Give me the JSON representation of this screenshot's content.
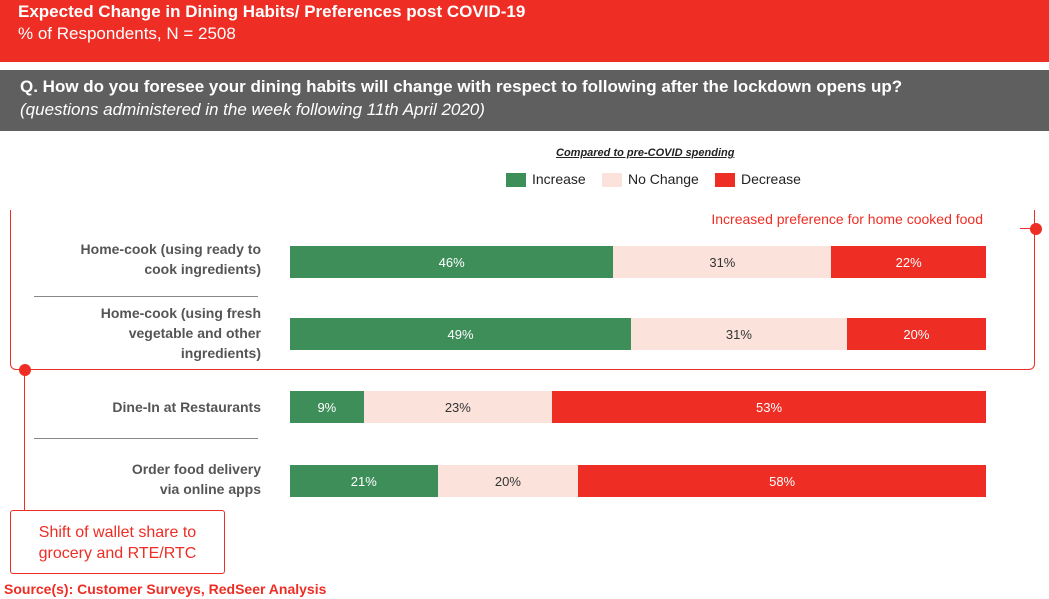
{
  "header": {
    "title": "Expected Change in Dining Habits/ Preferences post COVID-19",
    "subtitle": "% of Respondents, N = 2508"
  },
  "question": {
    "text": "Q. How do you foresee your dining habits will change with respect to following after the lockdown opens up?",
    "note": "(questions administered in the week following 11th April 2020)"
  },
  "chart_data": {
    "type": "bar",
    "orientation": "horizontal",
    "stacked": true,
    "legend_title": "Compared to pre-COVID spending",
    "legend_position": "top",
    "categories": [
      "Home-cook (using ready to cook ingredients)",
      "Home-cook (using fresh vegetable and other ingredients)",
      "Dine-In at Restaurants",
      "Order food delivery via online apps"
    ],
    "category_lines": [
      [
        "Home-cook (using ready to",
        "cook ingredients)"
      ],
      [
        "Home-cook (using fresh",
        "vegetable and other",
        "ingredients)"
      ],
      [
        "Dine-In at Restaurants"
      ],
      [
        "Order food delivery",
        "via online apps"
      ]
    ],
    "series": [
      {
        "name": "Increase",
        "color": "#3e8e5a",
        "values": [
          46,
          49,
          9,
          21
        ]
      },
      {
        "name": "No Change",
        "color": "#fbe3dc",
        "values": [
          31,
          31,
          23,
          20
        ]
      },
      {
        "name": "Decrease",
        "color": "#ee2d24",
        "values": [
          22,
          20,
          53,
          58
        ]
      }
    ],
    "data_labels": [
      [
        "46%",
        "31%",
        "22%"
      ],
      [
        "49%",
        "31%",
        "20%"
      ],
      [
        "9%",
        "23%",
        "53%"
      ],
      [
        "21%",
        "20%",
        "58%"
      ]
    ]
  },
  "callouts": {
    "right": "Increased  preference for home cooked food",
    "left": "Shift of wallet share to grocery and RTE/RTC"
  },
  "source": "Source(s): Customer Surveys, RedSeer Analysis",
  "colors": {
    "accent": "#ee2d24",
    "header_bg": "#ee2d24",
    "question_bg": "#5f5f5f"
  }
}
